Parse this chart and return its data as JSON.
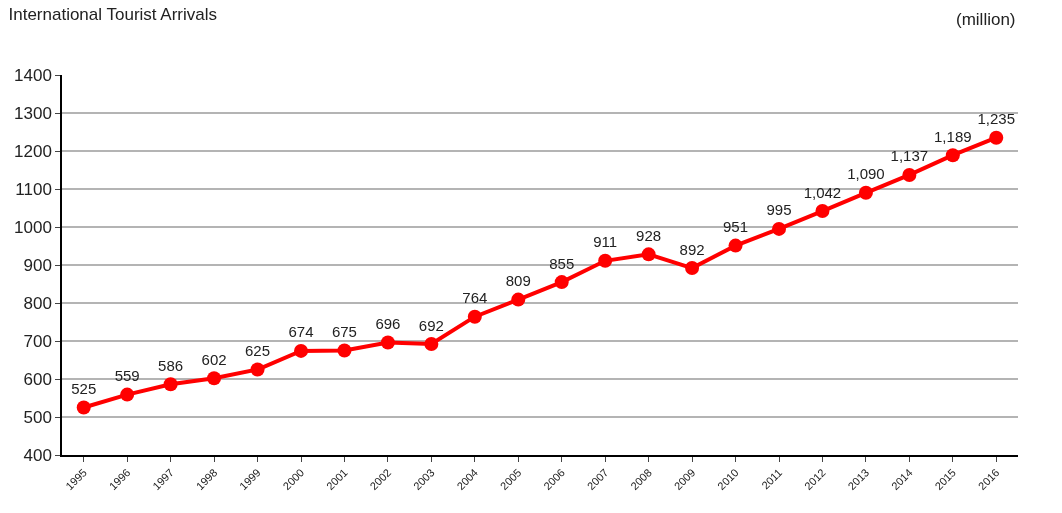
{
  "chart_data": {
    "type": "line",
    "title": "International Tourist Arrivals",
    "annotations": [
      "(million)"
    ],
    "categories": [
      "1995",
      "1996",
      "1997",
      "1998",
      "1999",
      "2000",
      "2001",
      "2002",
      "2003",
      "2004",
      "2005",
      "2006",
      "2007",
      "2008",
      "2009",
      "2010",
      "2011",
      "2012",
      "2013",
      "2014",
      "2015",
      "2016"
    ],
    "series": [
      {
        "color": "#ff0000",
        "values": [
          525,
          559,
          586,
          602,
          625,
          674,
          675,
          696,
          692,
          764,
          809,
          855,
          911,
          928,
          892,
          951,
          995,
          1042,
          1090,
          1137,
          1189,
          1235
        ],
        "value_labels": [
          "525",
          "559",
          "586",
          "602",
          "625",
          "674",
          "675",
          "696",
          "692",
          "764",
          "809",
          "855",
          "911",
          "928",
          "892",
          "951",
          "995",
          "1,042",
          "1,090",
          "1,137",
          "1,189",
          "1,235"
        ]
      }
    ],
    "ylim": [
      400,
      1400
    ],
    "yticks": [
      400,
      500,
      600,
      700,
      800,
      900,
      1000,
      1100,
      1200,
      1300,
      1400
    ],
    "grid": "y",
    "marker": "circle",
    "line_style": "solid"
  }
}
